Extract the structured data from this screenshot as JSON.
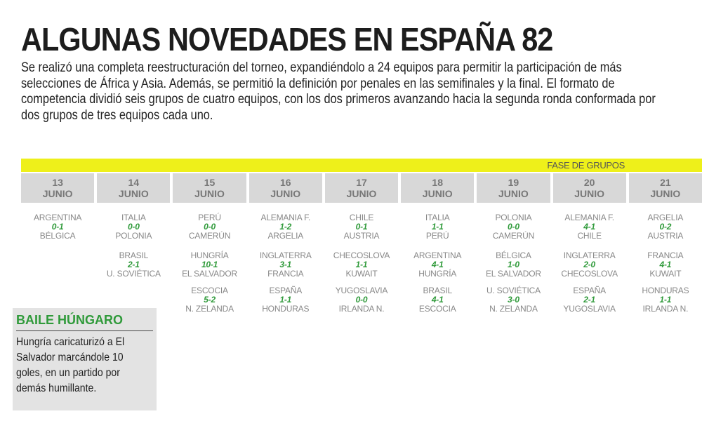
{
  "title": "ALGUNAS NOVEDADES EN ESPAÑA 82",
  "intro": "Se realizó una completa reestructuración del torneo, expandiéndolo a 24 equipos para permitir la participación de más selecciones de África y Asia. Además, se permitió la definición por penales en las semifinales y la final. El formato de competencia dividió seis grupos de cuatro equipos, con los dos primeros avanzando hacia la segunda ronda conformada por dos grupos de tres equipos cada uno.",
  "phase_label": "FASE DE GRUPOS",
  "colors": {
    "accent_yellow": "#eef01a",
    "score_green": "#2f9a3a",
    "header_gray": "#d8d8d8"
  },
  "days": [
    {
      "num": "13",
      "month": "JUNIO",
      "matches": [
        {
          "home": "ARGENTINA",
          "score": "0-1",
          "away": "BÉLGICA"
        }
      ]
    },
    {
      "num": "14",
      "month": "JUNIO",
      "matches": [
        {
          "home": "ITALIA",
          "score": "0-0",
          "away": "POLONIA"
        },
        {
          "home": "BRASIL",
          "score": "2-1",
          "away": "U. SOVIÉTICA"
        }
      ]
    },
    {
      "num": "15",
      "month": "JUNIO",
      "matches": [
        {
          "home": "PERÚ",
          "score": "0-0",
          "away": "CAMERÚN"
        },
        {
          "home": "HUNGRÍA",
          "score": "10-1",
          "away": "EL SALVADOR"
        },
        {
          "home": "ESCOCIA",
          "score": "5-2",
          "away": "N. ZELANDA"
        }
      ]
    },
    {
      "num": "16",
      "month": "JUNIO",
      "matches": [
        {
          "home": "ALEMANIA F.",
          "score": "1-2",
          "away": "ARGELIA"
        },
        {
          "home": "INGLATERRA",
          "score": "3-1",
          "away": "FRANCIA"
        },
        {
          "home": "ESPAÑA",
          "score": "1-1",
          "away": "HONDURAS"
        }
      ]
    },
    {
      "num": "17",
      "month": "JUNIO",
      "matches": [
        {
          "home": "CHILE",
          "score": "0-1",
          "away": "AUSTRIA"
        },
        {
          "home": "CHECOSLOVA",
          "score": "1-1",
          "away": "KUWAIT"
        },
        {
          "home": "YUGOSLAVIA",
          "score": "0-0",
          "away": "IRLANDA N."
        }
      ]
    },
    {
      "num": "18",
      "month": "JUNIO",
      "matches": [
        {
          "home": "ITALIA",
          "score": "1-1",
          "away": "PERÚ"
        },
        {
          "home": "ARGENTINA",
          "score": "4-1",
          "away": "HUNGRÍA"
        },
        {
          "home": "BRASIL",
          "score": "4-1",
          "away": "ESCOCIA"
        }
      ]
    },
    {
      "num": "19",
      "month": "JUNIO",
      "matches": [
        {
          "home": "POLONIA",
          "score": "0-0",
          "away": "CAMERÚN"
        },
        {
          "home": "BÉLGICA",
          "score": "1-0",
          "away": "EL SALVADOR"
        },
        {
          "home": "U. SOVIÉTICA",
          "score": "3-0",
          "away": "N. ZELANDA"
        }
      ]
    },
    {
      "num": "20",
      "month": "JUNIO",
      "matches": [
        {
          "home": "ALEMANIA F.",
          "score": "4-1",
          "away": "CHILE"
        },
        {
          "home": "INGLATERRA",
          "score": "2-0",
          "away": "CHECOSLOVA"
        },
        {
          "home": "ESPAÑA",
          "score": "2-1",
          "away": "YUGOSLAVIA"
        }
      ]
    },
    {
      "num": "21",
      "month": "JUNIO",
      "matches": [
        {
          "home": "ARGELIA",
          "score": "0-2",
          "away": "AUSTRIA"
        },
        {
          "home": "FRANCIA",
          "score": "4-1",
          "away": "KUWAIT"
        },
        {
          "home": "HONDURAS",
          "score": "1-1",
          "away": "IRLANDA N."
        }
      ]
    }
  ],
  "sidebar": {
    "title": "BAILE HÚNGARO",
    "text": "Hungría caricaturizó a El Salvador marcándole 10 goles, en un partido por demás humillante."
  }
}
